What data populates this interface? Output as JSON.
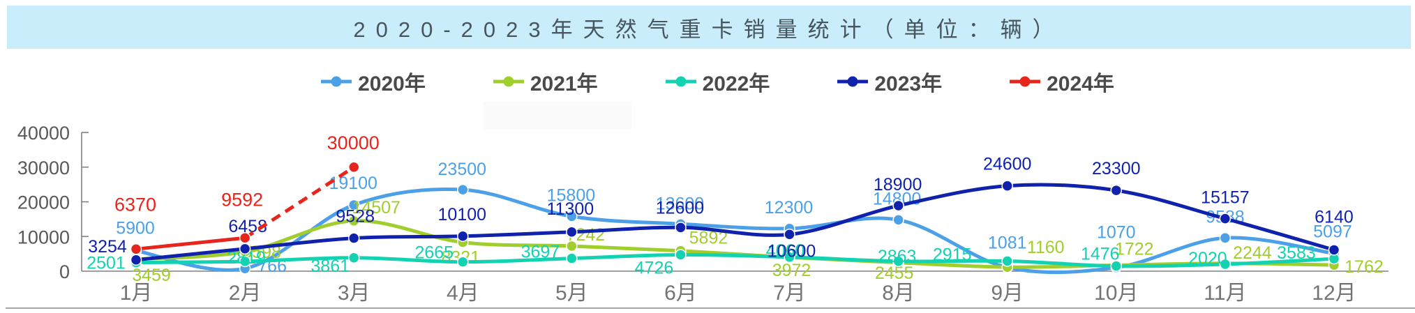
{
  "title": "2020-2023年天然气重卡销量统计（单位：辆）",
  "legend": {
    "items": [
      {
        "label": "2020年",
        "color": "#4ba0e8"
      },
      {
        "label": "2021年",
        "color": "#a0ce2c"
      },
      {
        "label": "2022年",
        "color": "#12d2b2"
      },
      {
        "label": "2023年",
        "color": "#1022ac"
      },
      {
        "label": "2024年",
        "color": "#e8251c"
      }
    ]
  },
  "chart_data": {
    "type": "line",
    "title": "2020-2023年天然气重卡销量统计（单位：辆）",
    "categories": [
      "1月",
      "2月",
      "3月",
      "4月",
      "5月",
      "6月",
      "7月",
      "8月",
      "9月",
      "10月",
      "11月",
      "12月"
    ],
    "series": [
      {
        "name": "2020年",
        "color": "#4ba0e8",
        "values": [
          5900,
          766,
          19100,
          23500,
          15800,
          13600,
          12300,
          14800,
          1081,
          1070,
          9588,
          5097
        ]
      },
      {
        "name": "2021年",
        "color": "#a0ce2c",
        "values": [
          3459,
          5598,
          14507,
          8321,
          7242,
          5892,
          3972,
          2455,
          1160,
          1722,
          2244,
          1762
        ]
      },
      {
        "name": "2022年",
        "color": "#12d2b2",
        "values": [
          2501,
          2819,
          3861,
          2665,
          3697,
          4726,
          4060,
          2863,
          2915,
          1476,
          2020,
          3583
        ]
      },
      {
        "name": "2023年",
        "color": "#1022ac",
        "values": [
          3254,
          6458,
          9528,
          10100,
          11300,
          12600,
          10600,
          18900,
          24600,
          23300,
          15157,
          6140
        ]
      },
      {
        "name": "2024年",
        "color": "#e8251c",
        "values": [
          6370,
          9592,
          30000,
          null,
          null,
          null,
          null,
          null,
          null,
          null,
          null,
          null
        ],
        "dashed_from_index": 1
      }
    ],
    "xlabel": "",
    "ylabel": "",
    "ylim": [
      0,
      40000
    ],
    "yticks": [
      0,
      10000,
      20000,
      30000,
      40000
    ],
    "grid": false,
    "legend_position": "top",
    "smooth": true,
    "data_labels": true
  }
}
